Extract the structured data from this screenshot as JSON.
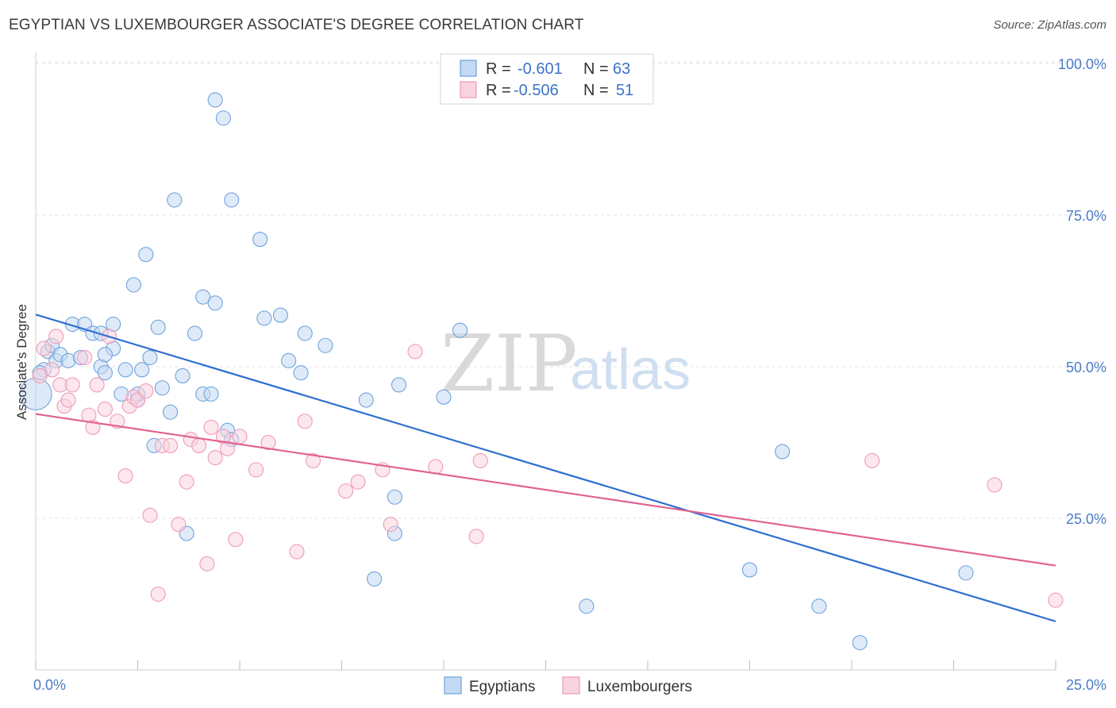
{
  "header": {
    "title": "EGYPTIAN VS LUXEMBOURGER ASSOCIATE'S DEGREE CORRELATION CHART",
    "source": "Source: ZipAtlas.com"
  },
  "watermark": {
    "zip": "ZIP",
    "atlas": "atlas"
  },
  "legend": {
    "rows": [
      {
        "r_label": "R =",
        "r_value": "-0.601",
        "n_label": "N =",
        "n_value": "63",
        "color": "#a9c9ef"
      },
      {
        "r_label": "R =",
        "r_value": "-0.506",
        "n_label": "N =",
        "n_value": "51",
        "color": "#f5b8cb"
      }
    ]
  },
  "bottom_legend": {
    "items": [
      {
        "label": "Egyptians",
        "color": "#a9c9ef"
      },
      {
        "label": "Luxembourgers",
        "color": "#f5b8cb"
      }
    ]
  },
  "chart_data": {
    "type": "scatter",
    "title": "EGYPTIAN VS LUXEMBOURGER ASSOCIATE'S DEGREE CORRELATION CHART",
    "xlabel": "",
    "ylabel": "Associate's Degree",
    "xlim": [
      0,
      25
    ],
    "ylim": [
      0,
      100
    ],
    "x_tick_labels": [
      "0.0%",
      "25.0%"
    ],
    "y_ticks": [
      25,
      50,
      75,
      100
    ],
    "y_tick_labels": [
      "25.0%",
      "50.0%",
      "75.0%",
      "100.0%"
    ],
    "grid": true,
    "series": [
      {
        "name": "Egyptians",
        "color": "#6fa3de",
        "fill": "#c4d9f3",
        "trend": {
          "x": [
            0,
            25
          ],
          "y": [
            58.6,
            8.0
          ],
          "color": "#2f6fcf"
        },
        "points": [
          [
            0.0,
            45.5
          ],
          [
            0.2,
            49.5
          ],
          [
            0.3,
            52.5
          ],
          [
            0.4,
            53.5
          ],
          [
            0.5,
            51.0
          ],
          [
            0.6,
            52.0
          ],
          [
            0.8,
            51.0
          ],
          [
            0.9,
            57.0
          ],
          [
            1.1,
            51.5
          ],
          [
            1.2,
            57.0
          ],
          [
            1.4,
            55.5
          ],
          [
            1.6,
            50.0
          ],
          [
            1.6,
            55.5
          ],
          [
            1.7,
            49.0
          ],
          [
            1.9,
            57.0
          ],
          [
            1.9,
            53.0
          ],
          [
            2.1,
            45.5
          ],
          [
            2.2,
            49.5
          ],
          [
            2.4,
            63.5
          ],
          [
            2.5,
            44.5
          ],
          [
            2.5,
            45.5
          ],
          [
            2.6,
            49.5
          ],
          [
            2.7,
            68.5
          ],
          [
            2.8,
            51.5
          ],
          [
            2.9,
            37.0
          ],
          [
            3.0,
            56.5
          ],
          [
            3.1,
            46.5
          ],
          [
            3.3,
            42.5
          ],
          [
            3.4,
            77.5
          ],
          [
            3.6,
            48.5
          ],
          [
            3.7,
            22.5
          ],
          [
            3.9,
            55.5
          ],
          [
            4.1,
            45.5
          ],
          [
            4.1,
            61.5
          ],
          [
            4.3,
            45.5
          ],
          [
            4.4,
            94.0
          ],
          [
            4.4,
            60.5
          ],
          [
            4.6,
            91.0
          ],
          [
            4.7,
            39.5
          ],
          [
            4.8,
            38.0
          ],
          [
            4.8,
            77.5
          ],
          [
            5.5,
            71.0
          ],
          [
            5.6,
            58.0
          ],
          [
            6.0,
            58.5
          ],
          [
            6.2,
            51.0
          ],
          [
            6.5,
            49.0
          ],
          [
            6.6,
            55.5
          ],
          [
            7.1,
            53.5
          ],
          [
            8.1,
            44.5
          ],
          [
            8.3,
            15.0
          ],
          [
            8.8,
            28.5
          ],
          [
            8.8,
            22.5
          ],
          [
            8.9,
            47.0
          ],
          [
            10.0,
            45.0
          ],
          [
            10.4,
            56.0
          ],
          [
            13.5,
            10.5
          ],
          [
            17.5,
            16.5
          ],
          [
            18.3,
            36.0
          ],
          [
            19.2,
            10.5
          ],
          [
            20.2,
            4.5
          ],
          [
            22.8,
            16.0
          ],
          [
            0.1,
            49.0
          ],
          [
            1.7,
            52.0
          ]
        ]
      },
      {
        "name": "Luxembourgers",
        "color": "#ee9bb6",
        "fill": "#f9d3df",
        "trend": {
          "x": [
            0,
            25
          ],
          "y": [
            42.2,
            17.2
          ],
          "color": "#e0628f"
        },
        "points": [
          [
            0.1,
            48.5
          ],
          [
            0.2,
            53.0
          ],
          [
            0.4,
            49.5
          ],
          [
            0.5,
            55.0
          ],
          [
            0.6,
            47.0
          ],
          [
            0.7,
            43.5
          ],
          [
            0.8,
            44.5
          ],
          [
            0.9,
            47.0
          ],
          [
            1.2,
            51.5
          ],
          [
            1.3,
            42.0
          ],
          [
            1.4,
            40.0
          ],
          [
            1.5,
            47.0
          ],
          [
            1.7,
            43.0
          ],
          [
            1.8,
            55.0
          ],
          [
            2.0,
            41.0
          ],
          [
            2.2,
            32.0
          ],
          [
            2.3,
            43.5
          ],
          [
            2.4,
            45.0
          ],
          [
            2.5,
            44.5
          ],
          [
            2.7,
            46.0
          ],
          [
            2.8,
            25.5
          ],
          [
            3.0,
            12.5
          ],
          [
            3.1,
            37.0
          ],
          [
            3.3,
            37.0
          ],
          [
            3.5,
            24.0
          ],
          [
            3.7,
            31.0
          ],
          [
            3.8,
            38.0
          ],
          [
            4.0,
            37.0
          ],
          [
            4.2,
            17.5
          ],
          [
            4.3,
            40.0
          ],
          [
            4.4,
            35.0
          ],
          [
            4.6,
            38.5
          ],
          [
            4.7,
            36.5
          ],
          [
            4.9,
            21.5
          ],
          [
            5.0,
            38.5
          ],
          [
            5.4,
            33.0
          ],
          [
            5.7,
            37.5
          ],
          [
            6.4,
            19.5
          ],
          [
            6.6,
            41.0
          ],
          [
            6.8,
            34.5
          ],
          [
            7.6,
            29.5
          ],
          [
            7.9,
            31.0
          ],
          [
            8.5,
            33.0
          ],
          [
            8.7,
            24.0
          ],
          [
            9.3,
            52.5
          ],
          [
            9.8,
            33.5
          ],
          [
            10.8,
            22.0
          ],
          [
            10.9,
            34.5
          ],
          [
            20.5,
            34.5
          ],
          [
            23.5,
            30.5
          ],
          [
            25.0,
            11.5
          ]
        ]
      }
    ]
  }
}
